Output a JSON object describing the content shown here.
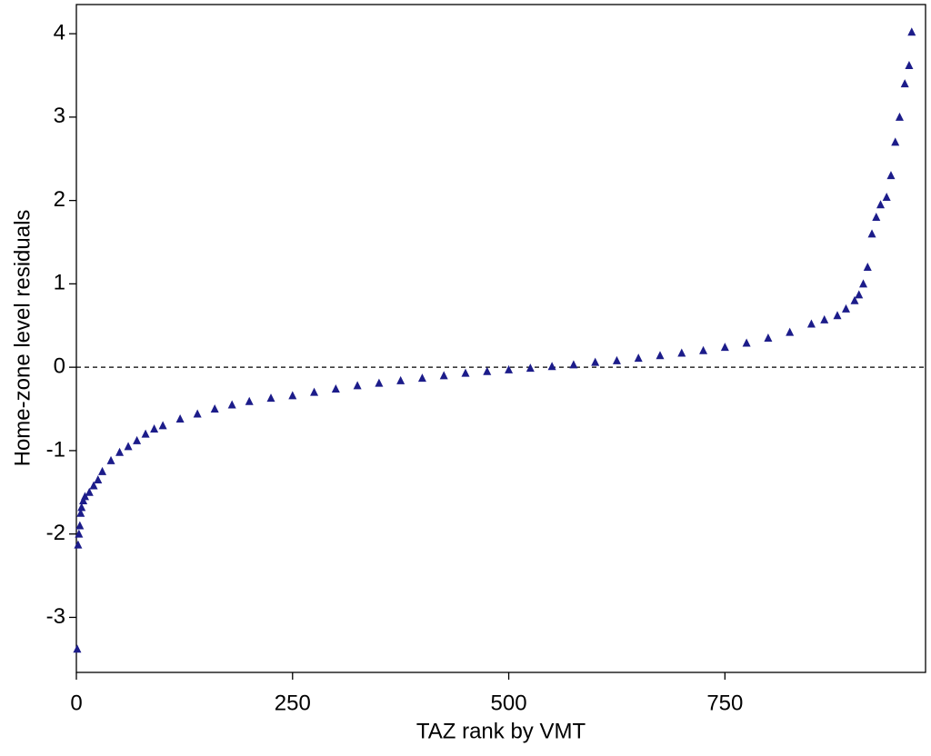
{
  "chart_data": {
    "type": "scatter",
    "x_label": "TAZ rank by VMT",
    "y_label": "Home-zone level residuals",
    "marker": "triangle",
    "grid": false,
    "reference_line": {
      "y": 0,
      "style": "dashed"
    },
    "xlim": [
      0,
      982
    ],
    "ylim": [
      -3.66,
      4.35
    ],
    "xticks": [
      0,
      250,
      500,
      750
    ],
    "yticks": [
      -3,
      -2,
      -1,
      0,
      1,
      2,
      3,
      4
    ],
    "series": [
      {
        "name": "Residuals",
        "color": "#1c1c8a",
        "x": [
          1,
          2,
          3,
          4,
          5,
          6,
          8,
          10,
          15,
          20,
          25,
          30,
          40,
          50,
          60,
          70,
          80,
          90,
          100,
          120,
          140,
          160,
          180,
          200,
          225,
          250,
          275,
          300,
          325,
          350,
          375,
          400,
          425,
          450,
          475,
          500,
          525,
          550,
          575,
          600,
          625,
          650,
          675,
          700,
          725,
          750,
          775,
          800,
          825,
          850,
          865,
          880,
          890,
          900,
          905,
          910,
          915,
          920,
          925,
          930,
          937,
          942,
          947,
          952,
          958,
          963,
          966
        ],
        "values": [
          -3.38,
          -2.13,
          -2.0,
          -1.9,
          -1.75,
          -1.68,
          -1.6,
          -1.55,
          -1.5,
          -1.42,
          -1.35,
          -1.25,
          -1.12,
          -1.02,
          -0.95,
          -0.88,
          -0.8,
          -0.74,
          -0.7,
          -0.62,
          -0.56,
          -0.5,
          -0.45,
          -0.41,
          -0.37,
          -0.34,
          -0.3,
          -0.26,
          -0.22,
          -0.19,
          -0.16,
          -0.13,
          -0.1,
          -0.07,
          -0.05,
          -0.03,
          -0.01,
          0.01,
          0.03,
          0.06,
          0.08,
          0.11,
          0.14,
          0.17,
          0.2,
          0.24,
          0.29,
          0.35,
          0.42,
          0.52,
          0.57,
          0.62,
          0.7,
          0.8,
          0.87,
          1.0,
          1.2,
          1.6,
          1.8,
          1.95,
          2.04,
          2.3,
          2.7,
          3.0,
          3.4,
          3.62,
          4.02
        ]
      }
    ]
  }
}
